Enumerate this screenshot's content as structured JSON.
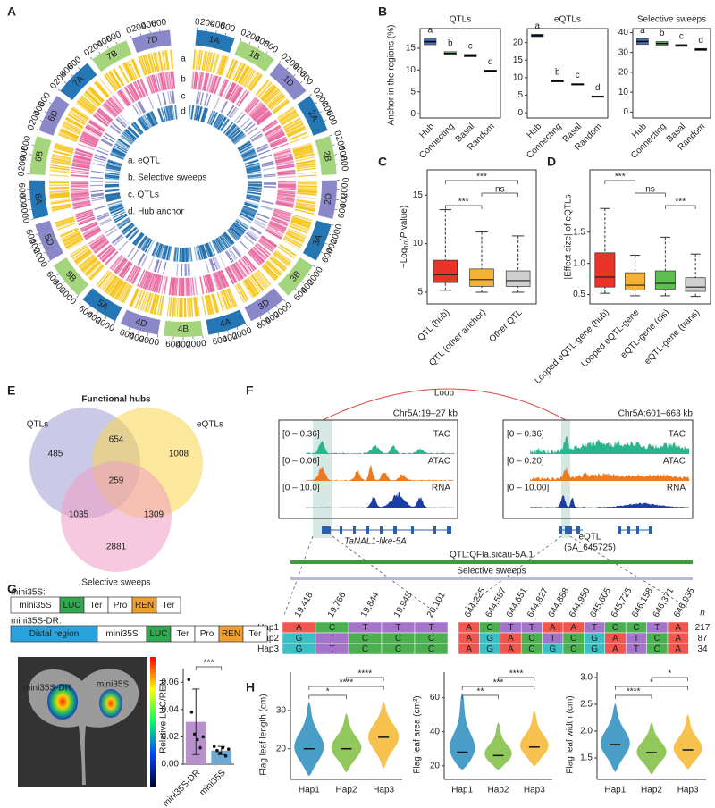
{
  "panel_labels": [
    "A",
    "B",
    "C",
    "D",
    "E",
    "F",
    "G",
    "H"
  ],
  "circos": {
    "chromosomes": [
      "1A",
      "1B",
      "1D",
      "2A",
      "2B",
      "2D",
      "3A",
      "3B",
      "3D",
      "4A",
      "4B",
      "4D",
      "5A",
      "5B",
      "5D",
      "6A",
      "6B",
      "6D",
      "7A",
      "7B",
      "7D"
    ],
    "colors": {
      "A": "#2576b5",
      "B": "#a4d57c",
      "D": "#8b88c9"
    },
    "ticks": [
      0,
      200,
      400,
      600
    ],
    "lim": [
      0,
      800
    ],
    "track_letters": [
      "a",
      "b",
      "c",
      "d"
    ],
    "track_colors": [
      "#f6c417",
      "#e8679f",
      "#7c7cc0",
      "#1f6fae"
    ],
    "legend": [
      "a. eQTL",
      "b. Selective sweeps",
      "c. QTLs",
      "d. Hub anchor"
    ]
  },
  "boxplots_b": {
    "ylabel": "Anchor in the regions (%)",
    "categories": [
      "Hub",
      "Connecting",
      "Basal",
      "Random"
    ],
    "colors": [
      "#4a6fb5",
      "#6bb36b",
      "#8a8a8a",
      "#4d4d4d"
    ],
    "panels": [
      {
        "title": "QTLs",
        "ylim": [
          -1,
          19.5
        ],
        "yticks": [
          0,
          5,
          10,
          15
        ],
        "letters": [
          "a",
          "b",
          "c",
          "d"
        ],
        "q1": [
          15.8,
          13.5,
          13.0,
          9.6
        ],
        "median": [
          16.5,
          13.8,
          13.3,
          9.8
        ],
        "q3": [
          17.3,
          14.2,
          13.6,
          10.0
        ]
      },
      {
        "title": "eQTLs",
        "ylim": [
          -1.5,
          24
        ],
        "yticks": [
          0,
          5,
          10,
          15,
          20
        ],
        "letters": [
          "a",
          "b",
          "c",
          "d"
        ],
        "q1": [
          21.7,
          8.8,
          7.9,
          4.4
        ],
        "median": [
          22,
          9,
          8.1,
          4.6
        ],
        "q3": [
          22.4,
          9.2,
          8.3,
          4.8
        ]
      },
      {
        "title": "Selective sweeps",
        "ylim": [
          -3,
          42
        ],
        "yticks": [
          0,
          10,
          20,
          30,
          40
        ],
        "letters": [
          "a",
          "b",
          "c",
          "d"
        ],
        "q1": [
          34,
          33.5,
          33,
          31
        ],
        "median": [
          35.5,
          34.5,
          33.5,
          31.5
        ],
        "q3": [
          37,
          35.5,
          34,
          32
        ]
      }
    ]
  },
  "boxplot_c": {
    "ylabel": [
      "−Log",
      "10",
      "(",
      "P",
      " value)"
    ],
    "categories": [
      "QTL (hub)",
      "QTL (other anchor)",
      "Other QTL"
    ],
    "colors": [
      "#e8332a",
      "#f5b335",
      "#cfcfcf"
    ],
    "ylim": [
      3.8,
      17.6
    ],
    "yticks": [
      5,
      10,
      15
    ],
    "lo": [
      5.2,
      5.0,
      5.0
    ],
    "q1": [
      6.0,
      5.6,
      5.6
    ],
    "median": [
      6.8,
      6.3,
      6.2
    ],
    "q3": [
      8.3,
      7.4,
      7.2
    ],
    "hi": [
      13.5,
      11.2,
      10.8
    ],
    "comparisons": [
      {
        "from": "QTL (hub)",
        "to": "Other QTL",
        "label": "***"
      },
      {
        "from": "QTL (other anchor)",
        "to": "Other QTL",
        "label": "ns"
      },
      {
        "from": "QTL (hub)",
        "to": "QTL (other anchor)",
        "label": "***"
      }
    ]
  },
  "boxplot_d": {
    "ylabel": "|Effect size| of eQTLs",
    "categories": [
      "Looped eQTL-gene (hub)",
      "Looped eQTL-gene",
      "eQTL-gene (cis)",
      "eQTL-gene (trans)"
    ],
    "colors": [
      "#e8332a",
      "#f5b335",
      "#5cbf4e",
      "#cfcfcf"
    ],
    "ylim": [
      0.35,
      2.5
    ],
    "yticks": [
      0.5,
      {
        "value": 1,
        "label": "1.0"
      },
      1.5
    ],
    "lo": [
      0.52,
      0.48,
      0.48,
      0.47
    ],
    "q1": [
      0.62,
      0.57,
      0.58,
      0.55
    ],
    "median": [
      0.78,
      0.65,
      0.68,
      0.62
    ],
    "q3": [
      1.17,
      0.85,
      0.88,
      0.77
    ],
    "hi": [
      1.88,
      1.13,
      1.42,
      1.15
    ],
    "comparisons": [
      {
        "from": "Looped eQTL-gene (hub)",
        "to": "Looped eQTL-gene",
        "label": "***"
      },
      {
        "from": "Looped eQTL-gene",
        "to": "eQTL-gene (cis)",
        "label": "ns"
      },
      {
        "from": "eQTL-gene (cis)",
        "to": "eQTL-gene (trans)",
        "label": "***"
      }
    ]
  },
  "venn": {
    "title": "Functional hubs",
    "sets": [
      {
        "name": "QTLs",
        "color": "#9f9dd6"
      },
      {
        "name": "eQTLs",
        "color": "#f8d54a"
      },
      {
        "name": "Selective sweeps",
        "color": "#f09cc5"
      }
    ],
    "counts": [
      485,
      654,
      1008,
      259,
      1035,
      1309,
      2881
    ]
  },
  "browser": {
    "loop": "Loop",
    "left": {
      "region": "Chr5A:19–27 kb",
      "tracks": [
        {
          "range": "[0 – 0.36]",
          "name": "TAC",
          "color": "#2bb58f"
        },
        {
          "range": "[0 – 0.06]",
          "name": "ATAC",
          "color": "#ee7a1f"
        },
        {
          "range": "[0 – 10.0]",
          "name": "RNA",
          "color": "#1b3ea6"
        }
      ]
    },
    "right": {
      "region": "Chr5A:601–663 kb",
      "tracks": [
        {
          "range": "[0 – 0.36]",
          "name": "TAC",
          "color": "#2bb58f"
        },
        {
          "range": "[0 – 0.20]",
          "name": "ATAC",
          "color": "#ee7a1f"
        },
        {
          "range": "[0 – 10.00]",
          "name": "RNA",
          "color": "#1b3ea6"
        }
      ]
    },
    "gene": "TaNAL1-like-5A",
    "eqtl": [
      "eQTL",
      "(5A_645725)"
    ],
    "qtl": "QTL:QFla.sicau-5A.1",
    "sweeps": "Selective sweeps"
  },
  "haplotypes": {
    "positions_left": [
      "19,418",
      "19,766",
      "19,844",
      "19,948",
      "20,101"
    ],
    "positions_right": [
      "644,225",
      "644,587",
      "644,651",
      "644,827",
      "644,888",
      "644,950",
      "645,605",
      "645,725",
      "646,158",
      "646,371",
      "646,935"
    ],
    "n_header": "n",
    "base_colors": {
      "A": "#f0564e",
      "C": "#4cb050",
      "G": "#3cbfc4",
      "T": "#a474c9"
    },
    "rows": [
      {
        "name": "Hap1",
        "left": [
          "A",
          "C",
          "T",
          "T",
          "T"
        ],
        "right": [
          "A",
          "C",
          "T",
          "T",
          "A",
          "A",
          "T",
          "C",
          "C",
          "T",
          "A"
        ],
        "n": 217
      },
      {
        "name": "Hap2",
        "left": [
          "G",
          "T",
          "C",
          "C",
          "C"
        ],
        "right": [
          "A",
          "G",
          "A",
          "C",
          "T",
          "C",
          "G",
          "A",
          "T",
          "C",
          "A"
        ],
        "n": 87
      },
      {
        "name": "Hap3",
        "left": [
          "G",
          "T",
          "C",
          "C",
          "C"
        ],
        "right": [
          "A",
          "G",
          "A",
          "C",
          "G",
          "C",
          "G",
          "A",
          "T",
          "C",
          "A"
        ],
        "n": 34
      }
    ]
  },
  "constructs": {
    "rows": [
      {
        "name": "mini35S:",
        "parts": [
          "mini35S",
          "LUC",
          "Ter",
          "Pro",
          "REN",
          "Ter"
        ]
      },
      {
        "name": "mini35S-DR:",
        "parts": [
          "Distal region",
          "mini35S",
          "LUC",
          "Ter",
          "Pro",
          "REN",
          "Ter"
        ]
      }
    ],
    "part_colors": {
      "LUC": "#2fa84f",
      "REN": "#f0a030",
      "Distal region": "#29a3dd"
    }
  },
  "photo": {
    "labels": [
      "mini35S-DR",
      "mini35S"
    ]
  },
  "luc_bar": {
    "ylabel": "Relative LUC/REN",
    "categories": [
      "mini35S-DR",
      "mini35S"
    ],
    "values": [
      0.031,
      0.01
    ],
    "errors": [
      0.024,
      0.003
    ],
    "points": [
      [
        0.062,
        0.038,
        0.022,
        0.018,
        0.012,
        0.02
      ],
      [
        0.013,
        0.01,
        0.008,
        0.012,
        0.006,
        0.011
      ]
    ],
    "colors": [
      "#b891cc",
      "#6fa8d0"
    ],
    "ylim": [
      0,
      0.07
    ],
    "yticks": [
      {
        "value": 0,
        "label": "0.00"
      },
      0.02,
      0.04,
      0.06
    ],
    "significance": "***"
  },
  "violins": {
    "categories": [
      "Hap1",
      "Hap2",
      "Hap3"
    ],
    "colors": [
      "#2b8cbe",
      "#7fbf3f",
      "#f5b82e"
    ],
    "panels": [
      {
        "ylabel": "Flag leaf length (cm)",
        "ylim": [
          12,
          40
        ],
        "yticks": [
          20,
          30
        ],
        "lo": [
          13,
          14,
          15
        ],
        "median": [
          20,
          20,
          23
        ],
        "hi": [
          32,
          29,
          32
        ],
        "comparisons": [
          {
            "from": "Hap2",
            "to": "Hap3",
            "label": "****"
          },
          {
            "from": "Hap1",
            "to": "Hap3",
            "label": "****"
          },
          {
            "from": "Hap1",
            "to": "Hap2",
            "label": "*"
          }
        ]
      },
      {
        "ylabel": "Flag leaf area (cm²)",
        "ylim": [
          12,
          75
        ],
        "yticks": [
          20,
          40,
          60
        ],
        "lo": [
          18,
          18,
          20
        ],
        "median": [
          28,
          26,
          31
        ],
        "hi": [
          62,
          45,
          52
        ],
        "comparisons": [
          {
            "from": "Hap2",
            "to": "Hap3",
            "label": "****"
          },
          {
            "from": "Hap1",
            "to": "Hap3",
            "label": "***"
          },
          {
            "from": "Hap1",
            "to": "Hap2",
            "label": "**"
          }
        ]
      },
      {
        "ylabel": "Flag leaf width (cm)",
        "ylim": [
          1.1,
          3.1
        ],
        "yticks": [
          1.5,
          {
            "value": 2,
            "label": "2.0"
          },
          2.5,
          {
            "value": 3,
            "label": "3.0"
          }
        ],
        "lo": [
          1.25,
          1.2,
          1.3
        ],
        "median": [
          1.75,
          1.6,
          1.65
        ],
        "hi": [
          2.5,
          2.15,
          2.3
        ],
        "comparisons": [
          {
            "from": "Hap2",
            "to": "Hap3",
            "label": "*"
          },
          {
            "from": "Hap1",
            "to": "Hap3",
            "label": "*"
          },
          {
            "from": "Hap1",
            "to": "Hap2",
            "label": "****"
          }
        ]
      }
    ]
  }
}
